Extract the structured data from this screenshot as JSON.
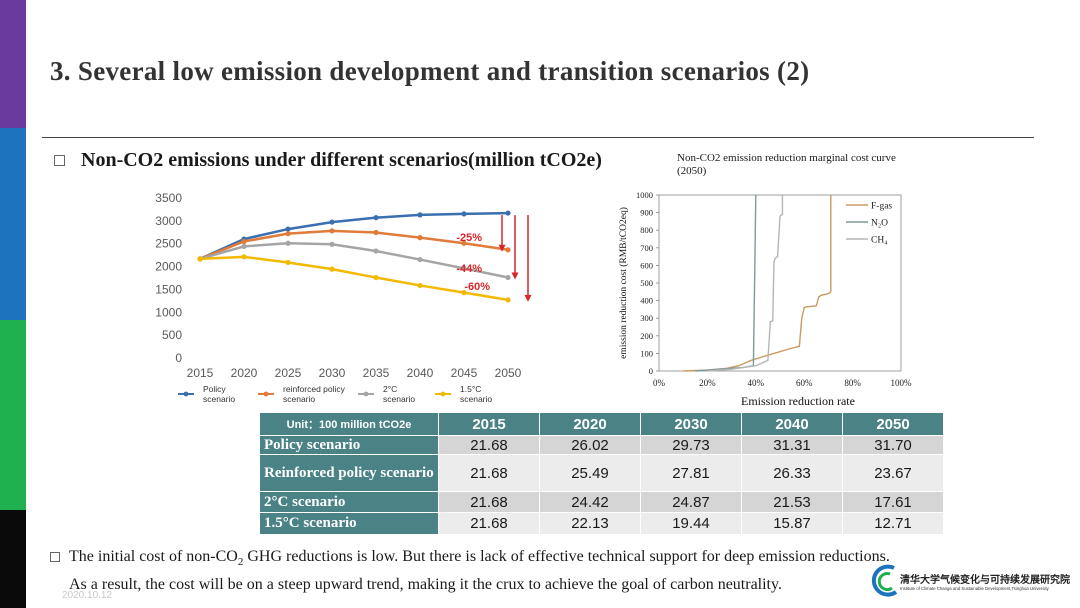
{
  "slide": {
    "title": "3. Several low emission development and transition scenarios (2)",
    "subheading": "Non-CO2 emissions under different scenarios(million tCO2e)",
    "colors": {
      "sidebar": [
        "#6a3a9e",
        "#1e73be",
        "#1fb050",
        "#0a0a0a"
      ],
      "table_header": "#4b8285"
    }
  },
  "chart_data": [
    {
      "type": "line",
      "x": [
        2015,
        2020,
        2025,
        2030,
        2035,
        2040,
        2045,
        2050
      ],
      "ylim": [
        0,
        3500
      ],
      "yticks": [
        0,
        500,
        1000,
        1500,
        2000,
        2500,
        3000,
        3500
      ],
      "grid": false,
      "legend_position": "bottom",
      "series": [
        {
          "name": "Policy scenario",
          "color": "#3a6fb0",
          "values": [
            2168,
            2602,
            2820,
            2973,
            3070,
            3131,
            3152,
            3170
          ]
        },
        {
          "name": "reinforced policy scenario",
          "color": "#e07b39",
          "values": [
            2168,
            2549,
            2720,
            2781,
            2745,
            2633,
            2510,
            2367
          ]
        },
        {
          "name": "2°C scenario",
          "color": "#a5a5a5",
          "values": [
            2168,
            2442,
            2510,
            2487,
            2340,
            2153,
            1960,
            1761
          ]
        },
        {
          "name": "1.5°C scenario",
          "color": "#f2b900",
          "values": [
            2168,
            2213,
            2090,
            1944,
            1760,
            1587,
            1430,
            1271
          ]
        }
      ],
      "annotations": [
        "-25%",
        "-44%",
        "-60%"
      ],
      "annotation_color": "#d9262a"
    },
    {
      "type": "line",
      "title": "Non-CO2 emission reduction marginal cost curve (2050)",
      "xlabel": "Emission reduction rate",
      "ylabel": "emission reduction cost (RMB/tCO2eq)",
      "xlim": [
        0,
        100
      ],
      "ylim": [
        0,
        1000
      ],
      "xticks": [
        "0%",
        "20%",
        "40%",
        "60%",
        "80%",
        "100%"
      ],
      "yticks": [
        0,
        100,
        200,
        300,
        400,
        500,
        600,
        700,
        800,
        900,
        1000
      ],
      "legend_position": "top-right",
      "series": [
        {
          "name": "F-gas",
          "color": "#c99a62",
          "x": [
            10,
            20,
            28,
            33,
            38,
            45,
            55,
            58,
            59,
            60,
            61,
            65,
            66,
            67,
            70,
            71,
            71
          ],
          "y": [
            0,
            5,
            15,
            30,
            60,
            90,
            130,
            140,
            300,
            360,
            365,
            370,
            420,
            430,
            440,
            450,
            1000
          ]
        },
        {
          "name": "N₂O",
          "color": "#7f9a9a",
          "x": [
            15,
            25,
            35,
            39,
            39.5,
            40
          ],
          "y": [
            0,
            10,
            20,
            30,
            500,
            1000
          ]
        },
        {
          "name": "CH₄",
          "color": "#b5b5b5",
          "x": [
            20,
            30,
            40,
            45,
            46,
            47,
            47.5,
            48,
            49,
            50,
            51,
            51
          ],
          "y": [
            0,
            10,
            30,
            60,
            280,
            285,
            620,
            640,
            650,
            880,
            890,
            1000
          ]
        }
      ]
    }
  ],
  "table": {
    "unit_label": "Unit：100 million tCO2e",
    "years": [
      "2015",
      "2020",
      "2030",
      "2040",
      "2050"
    ],
    "rows": [
      {
        "label": "Policy scenario",
        "values": [
          "21.68",
          "26.02",
          "29.73",
          "31.31",
          "31.70"
        ]
      },
      {
        "label": "Reinforced policy scenario",
        "values": [
          "21.68",
          "25.49",
          "27.81",
          "26.33",
          "23.67"
        ]
      },
      {
        "label": "2°C scenario",
        "values": [
          "21.68",
          "24.42",
          "24.87",
          "21.53",
          "17.61"
        ]
      },
      {
        "label": "1.5°C scenario",
        "values": [
          "21.68",
          "22.13",
          "19.44",
          "15.87",
          "12.71"
        ]
      }
    ]
  },
  "paragraph": {
    "prefix": "The initial cost of non-CO",
    "subscript": "2",
    "line1_rest": " GHG reductions is low. But there is lack of effective technical support for deep emission reductions.",
    "line2": "As a result, the cost will be on a steep upward trend, making it the crux to achieve the goal of carbon neutrality."
  },
  "footer": {
    "date": "2020.10.12",
    "logo_cn": "清华大学气候变化与可持续发展研究院",
    "logo_en": "Institute of Climate Change and Sustainable Development,Tsinghua University"
  }
}
